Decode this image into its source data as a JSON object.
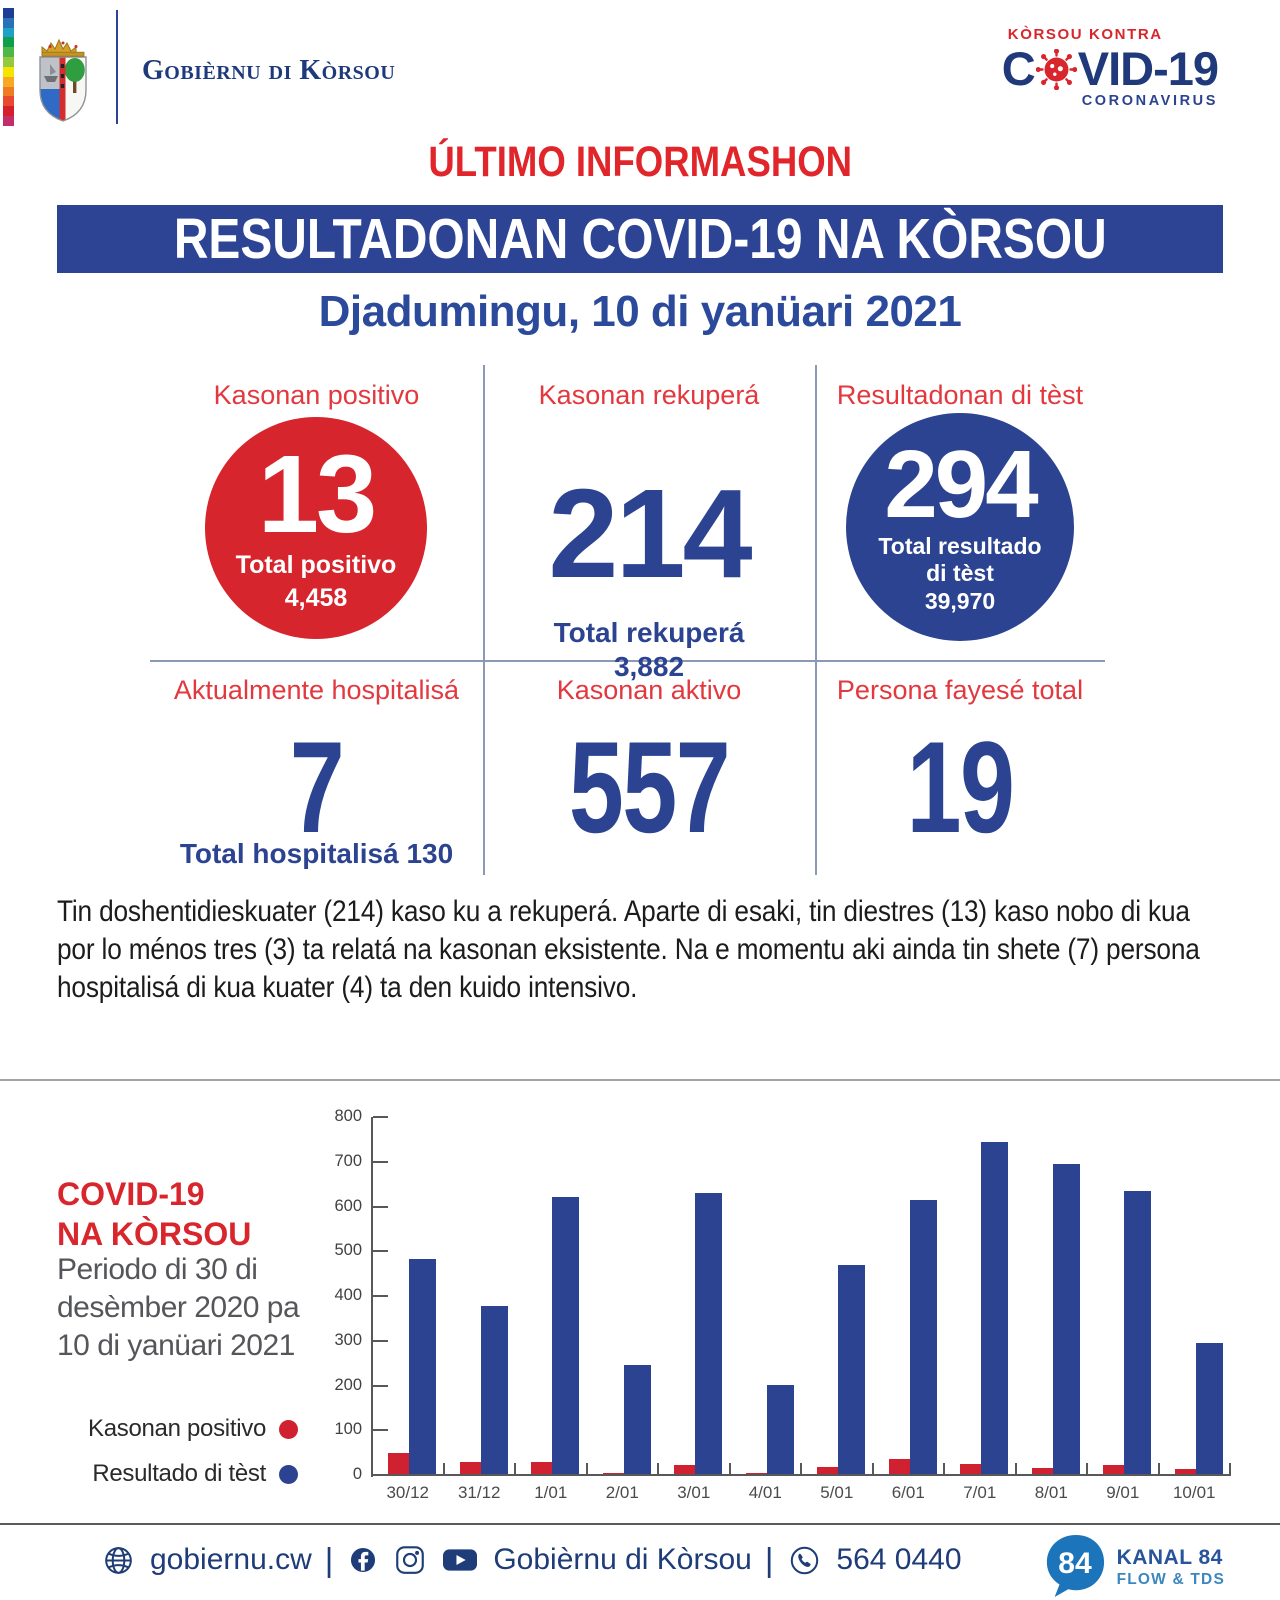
{
  "header": {
    "government_name": "Gobièrnu di Kòrsou",
    "covid_logo": {
      "top": "KÒRSOU KONTRA",
      "main_prefix": "C",
      "main_suffix": "VID-19",
      "subtitle": "CORONAVIRUS"
    }
  },
  "title": "ÚLTIMO INFORMASHON",
  "banner": "RESULTADONAN COVID-19 NA KÒRSOU",
  "date_line": "Djadumingu, 10 di yanüari 2021",
  "stats": {
    "positive": {
      "label": "Kasonan positivo",
      "value": "13",
      "total_label": "Total positivo",
      "total_value": "4,458"
    },
    "recovered": {
      "label": "Kasonan rekuperá",
      "value": "214",
      "total_label": "Total rekuperá",
      "total_value": "3,882"
    },
    "tests": {
      "label": "Resultadonan di tèst",
      "value": "294",
      "total_label_line1": "Total resultado",
      "total_label_line2": "di tèst",
      "total_value": "39,970"
    },
    "hospitalized": {
      "label": "Aktualmente hospitalisá",
      "value": "7",
      "total_label": "Total hospitalisá 130"
    },
    "active": {
      "label": "Kasonan aktivo",
      "value": "557"
    },
    "deceased": {
      "label": "Persona fayesé total",
      "value": "19"
    }
  },
  "paragraph": "Tin doshentidieskuater (214) kaso ku a rekuperá. Aparte di esaki, tin diestres (13) kaso nobo di kua por lo ménos tres (3) ta relatá na kasonan eksistente. Na e momentu aki ainda tin shete (7) persona hospitalisá di kua kuater (4) ta den kuido intensivo.",
  "chart_panel": {
    "title_line1": "COVID-19",
    "title_line2": "NA KÒRSOU",
    "subtitle": "Periodo di 30 di desèmber 2020 pa 10 di yanüari 2021",
    "legend": [
      {
        "label": "Kasonan positivo",
        "color": "#cf2130"
      },
      {
        "label": "Resultado di tèst",
        "color": "#2b4390"
      }
    ]
  },
  "chart_data": {
    "type": "bar",
    "title": "COVID-19 NA KÒRSOU — Periodo di 30 di desèmber 2020 pa 10 di yanüari 2021",
    "categories": [
      "30/12",
      "31/12",
      "1/01",
      "2/01",
      "3/01",
      "4/01",
      "5/01",
      "6/01",
      "7/01",
      "8/01",
      "9/01",
      "10/01"
    ],
    "series": [
      {
        "name": "Kasonan positivo",
        "color": "#cf2130",
        "values": [
          50,
          30,
          28,
          5,
          22,
          5,
          18,
          35,
          25,
          15,
          22,
          13
        ]
      },
      {
        "name": "Resultado di tèst",
        "color": "#2b4390",
        "values": [
          483,
          377,
          622,
          245,
          630,
          202,
          470,
          615,
          745,
          695,
          635,
          294
        ]
      }
    ],
    "xlabel": "",
    "ylabel": "",
    "ylim": [
      0,
      800
    ],
    "yticks": [
      0,
      100,
      200,
      300,
      400,
      500,
      600,
      700,
      800
    ],
    "grid": false,
    "legend_position": "left"
  },
  "footer": {
    "website": "gobiernu.cw",
    "separator": "|",
    "social_name": "Gobièrnu di Kòrsou",
    "phone": "564 0440",
    "icons": [
      "globe",
      "facebook",
      "instagram",
      "youtube",
      "whatsapp"
    ],
    "kanal84": {
      "bubble": "84",
      "name": "KANAL 84",
      "tagline": "FLOW & TDS"
    }
  },
  "colors": {
    "red_primary": "#d7252d",
    "red_label": "#e2383e",
    "blue_primary": "#2b4390",
    "banner_blue": "#2c4493",
    "footer_blue": "#1e3c78",
    "gray_text": "#55565a",
    "stripe": [
      "#1c3e94",
      "#2a71b8",
      "#1fa0c8",
      "#0f9e49",
      "#4db848",
      "#94c83d",
      "#f5e400",
      "#f6a921",
      "#ef7c22",
      "#e9492f",
      "#d5202c",
      "#c52d68"
    ]
  }
}
